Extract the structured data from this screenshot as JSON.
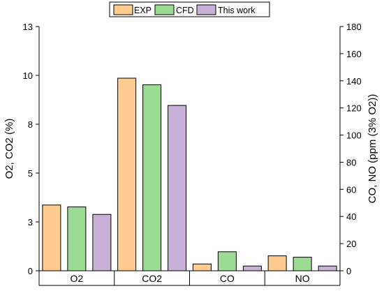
{
  "chart_data": {
    "type": "bar",
    "categories": [
      "O2",
      "CO2",
      "CO",
      "NO"
    ],
    "series": [
      {
        "name": "EXP",
        "color": "#FFCB8E",
        "values": [
          3.5,
          10.25,
          0.4,
          0.8
        ],
        "axis": [
          "left",
          "left",
          "right",
          "right"
        ],
        "right_values": [
          null,
          null,
          5,
          11
        ]
      },
      {
        "name": "CFD",
        "color": "#9BDB93",
        "values": [
          3.4,
          9.9,
          1.2,
          0.8
        ],
        "axis": [
          "left",
          "left",
          "right",
          "right"
        ],
        "right_values": [
          null,
          null,
          14,
          10
        ]
      },
      {
        "name": "This work",
        "color": "#C9B0D6",
        "values": [
          3.0,
          8.8,
          0.3,
          0.3
        ],
        "axis": [
          "left",
          "left",
          "right",
          "right"
        ],
        "right_values": [
          null,
          null,
          3.5,
          3.5
        ]
      }
    ],
    "left_axis": {
      "label": "O2, CO2 (%)",
      "ylim": [
        0,
        13
      ],
      "tick_values": [
        0,
        2.6,
        5.2,
        7.8,
        10.4,
        13
      ],
      "tick_labels": [
        "0",
        "3",
        "5",
        "8",
        "10",
        "13"
      ]
    },
    "right_axis": {
      "label": "CO, NO (ppm (3% O2))",
      "ylim": [
        0,
        180
      ],
      "tick_values": [
        0,
        20,
        40,
        60,
        80,
        100,
        120,
        140,
        160,
        180
      ],
      "tick_labels": [
        "0",
        "20",
        "40",
        "60",
        "80",
        "100",
        "120",
        "140",
        "160",
        "180"
      ]
    },
    "legend_placement": "top-center",
    "grid": false
  }
}
